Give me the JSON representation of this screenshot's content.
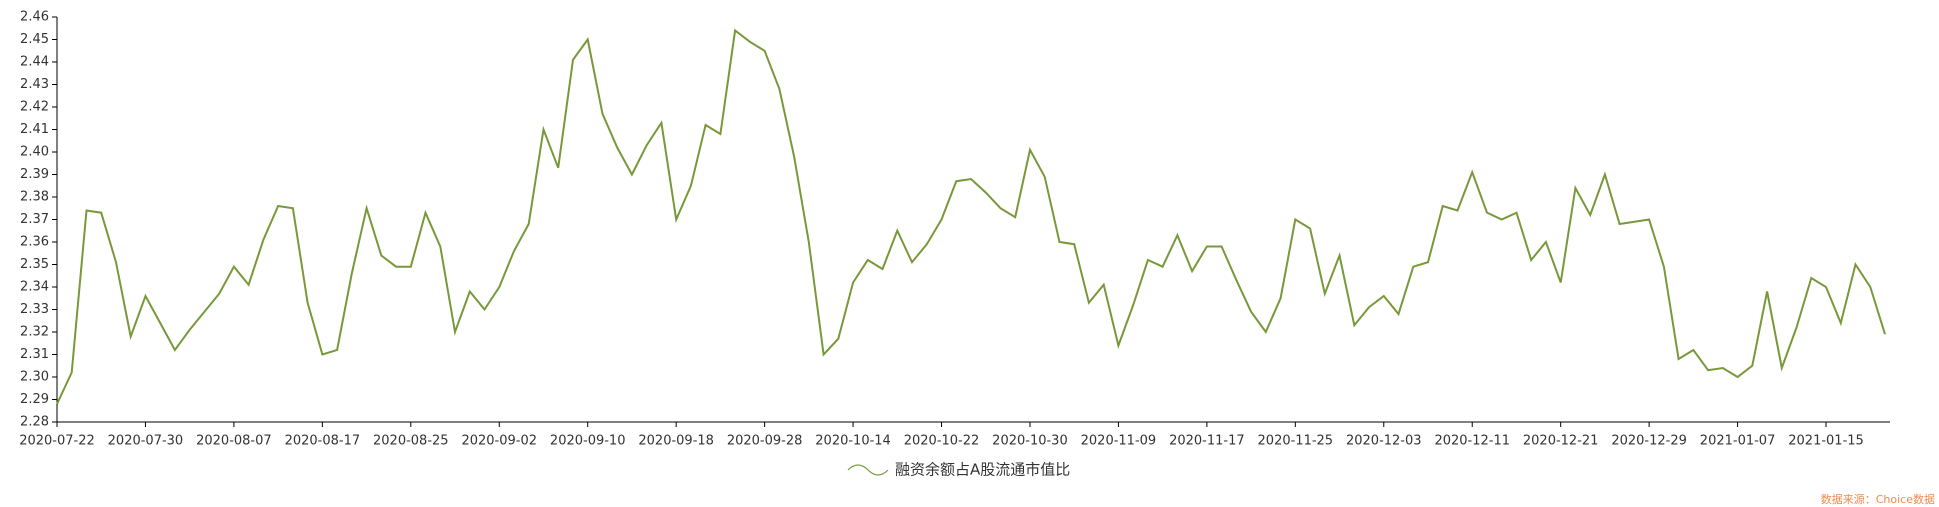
{
  "chart_data": {
    "type": "line",
    "categories": [
      "2020-07-22",
      null,
      null,
      null,
      null,
      null,
      "2020-07-30",
      null,
      null,
      null,
      null,
      null,
      "2020-08-07",
      null,
      null,
      null,
      null,
      null,
      "2020-08-17",
      null,
      null,
      null,
      null,
      null,
      "2020-08-25",
      null,
      null,
      null,
      null,
      null,
      "2020-09-02",
      null,
      null,
      null,
      null,
      null,
      "2020-09-10",
      null,
      null,
      null,
      null,
      null,
      "2020-09-18",
      null,
      null,
      null,
      null,
      null,
      "2020-09-28",
      null,
      null,
      null,
      null,
      null,
      "2020-10-14",
      null,
      null,
      null,
      null,
      null,
      "2020-10-22",
      null,
      null,
      null,
      null,
      null,
      "2020-10-30",
      null,
      null,
      null,
      null,
      null,
      "2020-11-09",
      null,
      null,
      null,
      null,
      null,
      "2020-11-17",
      null,
      null,
      null,
      null,
      null,
      "2020-11-25",
      null,
      null,
      null,
      null,
      null,
      "2020-12-03",
      null,
      null,
      null,
      null,
      null,
      "2020-12-11",
      null,
      null,
      null,
      null,
      null,
      "2020-12-21",
      null,
      null,
      null,
      null,
      null,
      "2020-12-29",
      null,
      null,
      null,
      null,
      null,
      "2021-01-07",
      null,
      null,
      null,
      null,
      null,
      "2021-01-15",
      null,
      null,
      null,
      null
    ],
    "series": [
      {
        "name": "融资余额占A股流通市值比",
        "color": "#77993a",
        "values": [
          2.288,
          2.302,
          2.374,
          2.373,
          2.351,
          2.318,
          2.336,
          2.324,
          2.312,
          2.321,
          2.329,
          2.337,
          2.349,
          2.341,
          2.361,
          2.376,
          2.375,
          2.333,
          2.31,
          2.312,
          2.346,
          2.375,
          2.354,
          2.349,
          2.349,
          2.373,
          2.358,
          2.32,
          2.338,
          2.33,
          2.34,
          2.356,
          2.368,
          2.41,
          2.393,
          2.441,
          2.45,
          2.417,
          2.402,
          2.39,
          2.403,
          2.413,
          2.37,
          2.385,
          2.412,
          2.408,
          2.454,
          2.449,
          2.445,
          2.428,
          2.398,
          2.36,
          2.31,
          2.317,
          2.342,
          2.352,
          2.348,
          2.365,
          2.351,
          2.359,
          2.37,
          2.387,
          2.388,
          2.382,
          2.375,
          2.371,
          2.401,
          2.389,
          2.36,
          2.359,
          2.333,
          2.341,
          2.314,
          2.332,
          2.352,
          2.349,
          2.363,
          2.347,
          2.358,
          2.358,
          2.343,
          2.329,
          2.32,
          2.335,
          2.37,
          2.366,
          2.337,
          2.354,
          2.323,
          2.331,
          2.336,
          2.328,
          2.349,
          2.351,
          2.376,
          2.374,
          2.391,
          2.373,
          2.37,
          2.373,
          2.352,
          2.36,
          2.342,
          2.384,
          2.372,
          2.39,
          2.368,
          2.369,
          2.37,
          2.349,
          2.308,
          2.312,
          2.303,
          2.304,
          2.3,
          2.305,
          2.338,
          2.304,
          2.322,
          2.344,
          2.34,
          2.324,
          2.35,
          2.34,
          2.319
        ]
      }
    ],
    "ylim": [
      2.28,
      2.46
    ],
    "yticks": [
      2.28,
      2.29,
      {
        "value": 2.3,
        "label": "2.30"
      },
      2.31,
      2.32,
      2.33,
      2.34,
      2.35,
      2.36,
      2.37,
      2.38,
      2.39,
      {
        "value": 2.4,
        "label": "2.40"
      },
      2.41,
      2.42,
      2.43,
      2.44,
      2.45,
      2.46
    ],
    "source": "数据来源：Choice数据"
  }
}
